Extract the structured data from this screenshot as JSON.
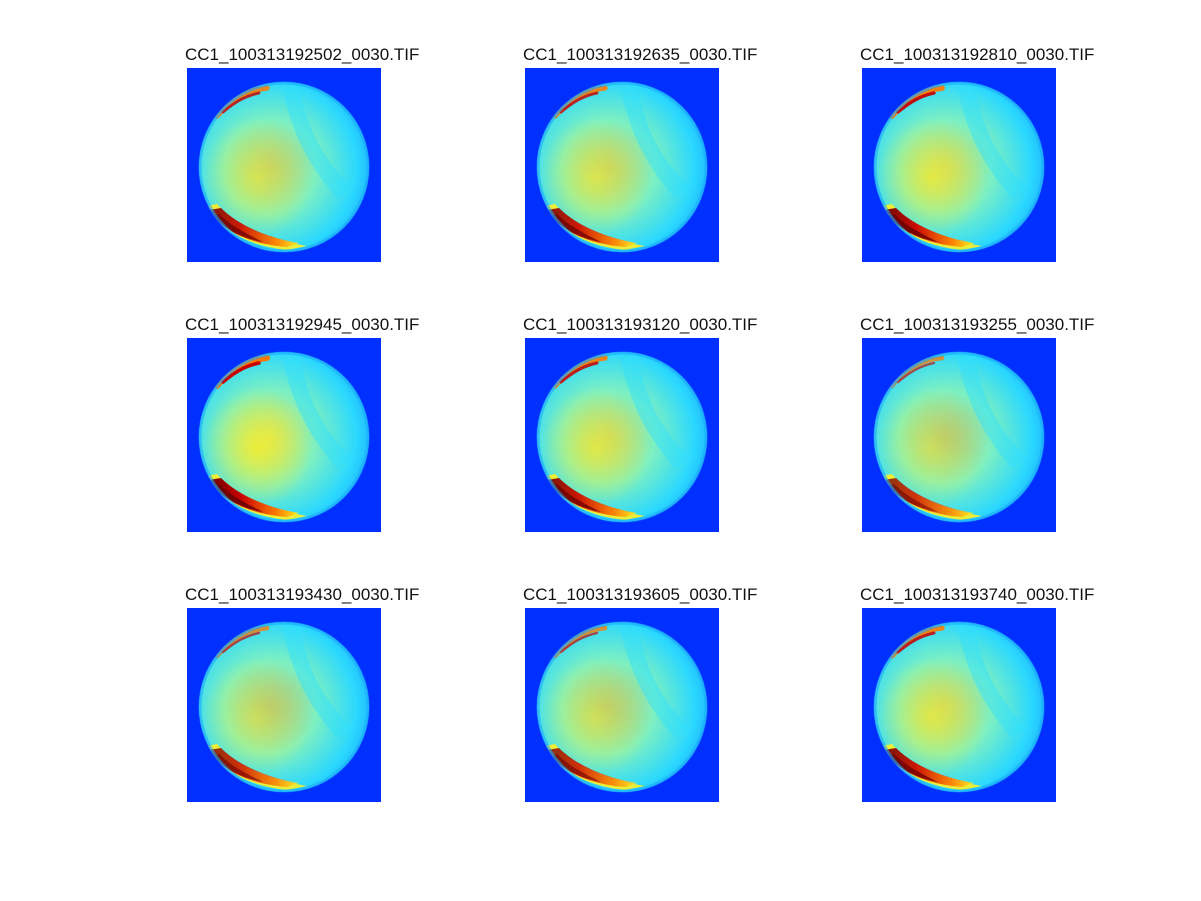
{
  "figure": {
    "panels": [
      {
        "title": "CC1_100313192502_0030.TIF",
        "red_intensity": 0.75,
        "yellow_intensity": 0.45
      },
      {
        "title": "CC1_100313192635_0030.TIF",
        "red_intensity": 0.75,
        "yellow_intensity": 0.5
      },
      {
        "title": "CC1_100313192810_0030.TIF",
        "red_intensity": 0.9,
        "yellow_intensity": 0.65
      },
      {
        "title": "CC1_100313192945_0030.TIF",
        "red_intensity": 1.0,
        "yellow_intensity": 0.85
      },
      {
        "title": "CC1_100313193120_0030.TIF",
        "red_intensity": 0.8,
        "yellow_intensity": 0.6
      },
      {
        "title": "CC1_100313193255_0030.TIF",
        "red_intensity": 0.5,
        "yellow_intensity": 0.3
      },
      {
        "title": "CC1_100313193430_0030.TIF",
        "red_intensity": 0.55,
        "yellow_intensity": 0.3
      },
      {
        "title": "CC1_100313193605_0030.TIF",
        "red_intensity": 0.55,
        "yellow_intensity": 0.35
      },
      {
        "title": "CC1_100313193740_0030.TIF",
        "red_intensity": 0.8,
        "yellow_intensity": 0.6
      }
    ],
    "colors": {
      "background": "#0030ff",
      "disc_outer": "#2ad8ff",
      "disc_mid": "#7ff0c0",
      "disc_core": "#d8f060",
      "hot_yellow": "#ffee22",
      "hot_orange": "#ff7a00",
      "hot_red": "#c80000",
      "hot_dark": "#6a0000"
    }
  }
}
